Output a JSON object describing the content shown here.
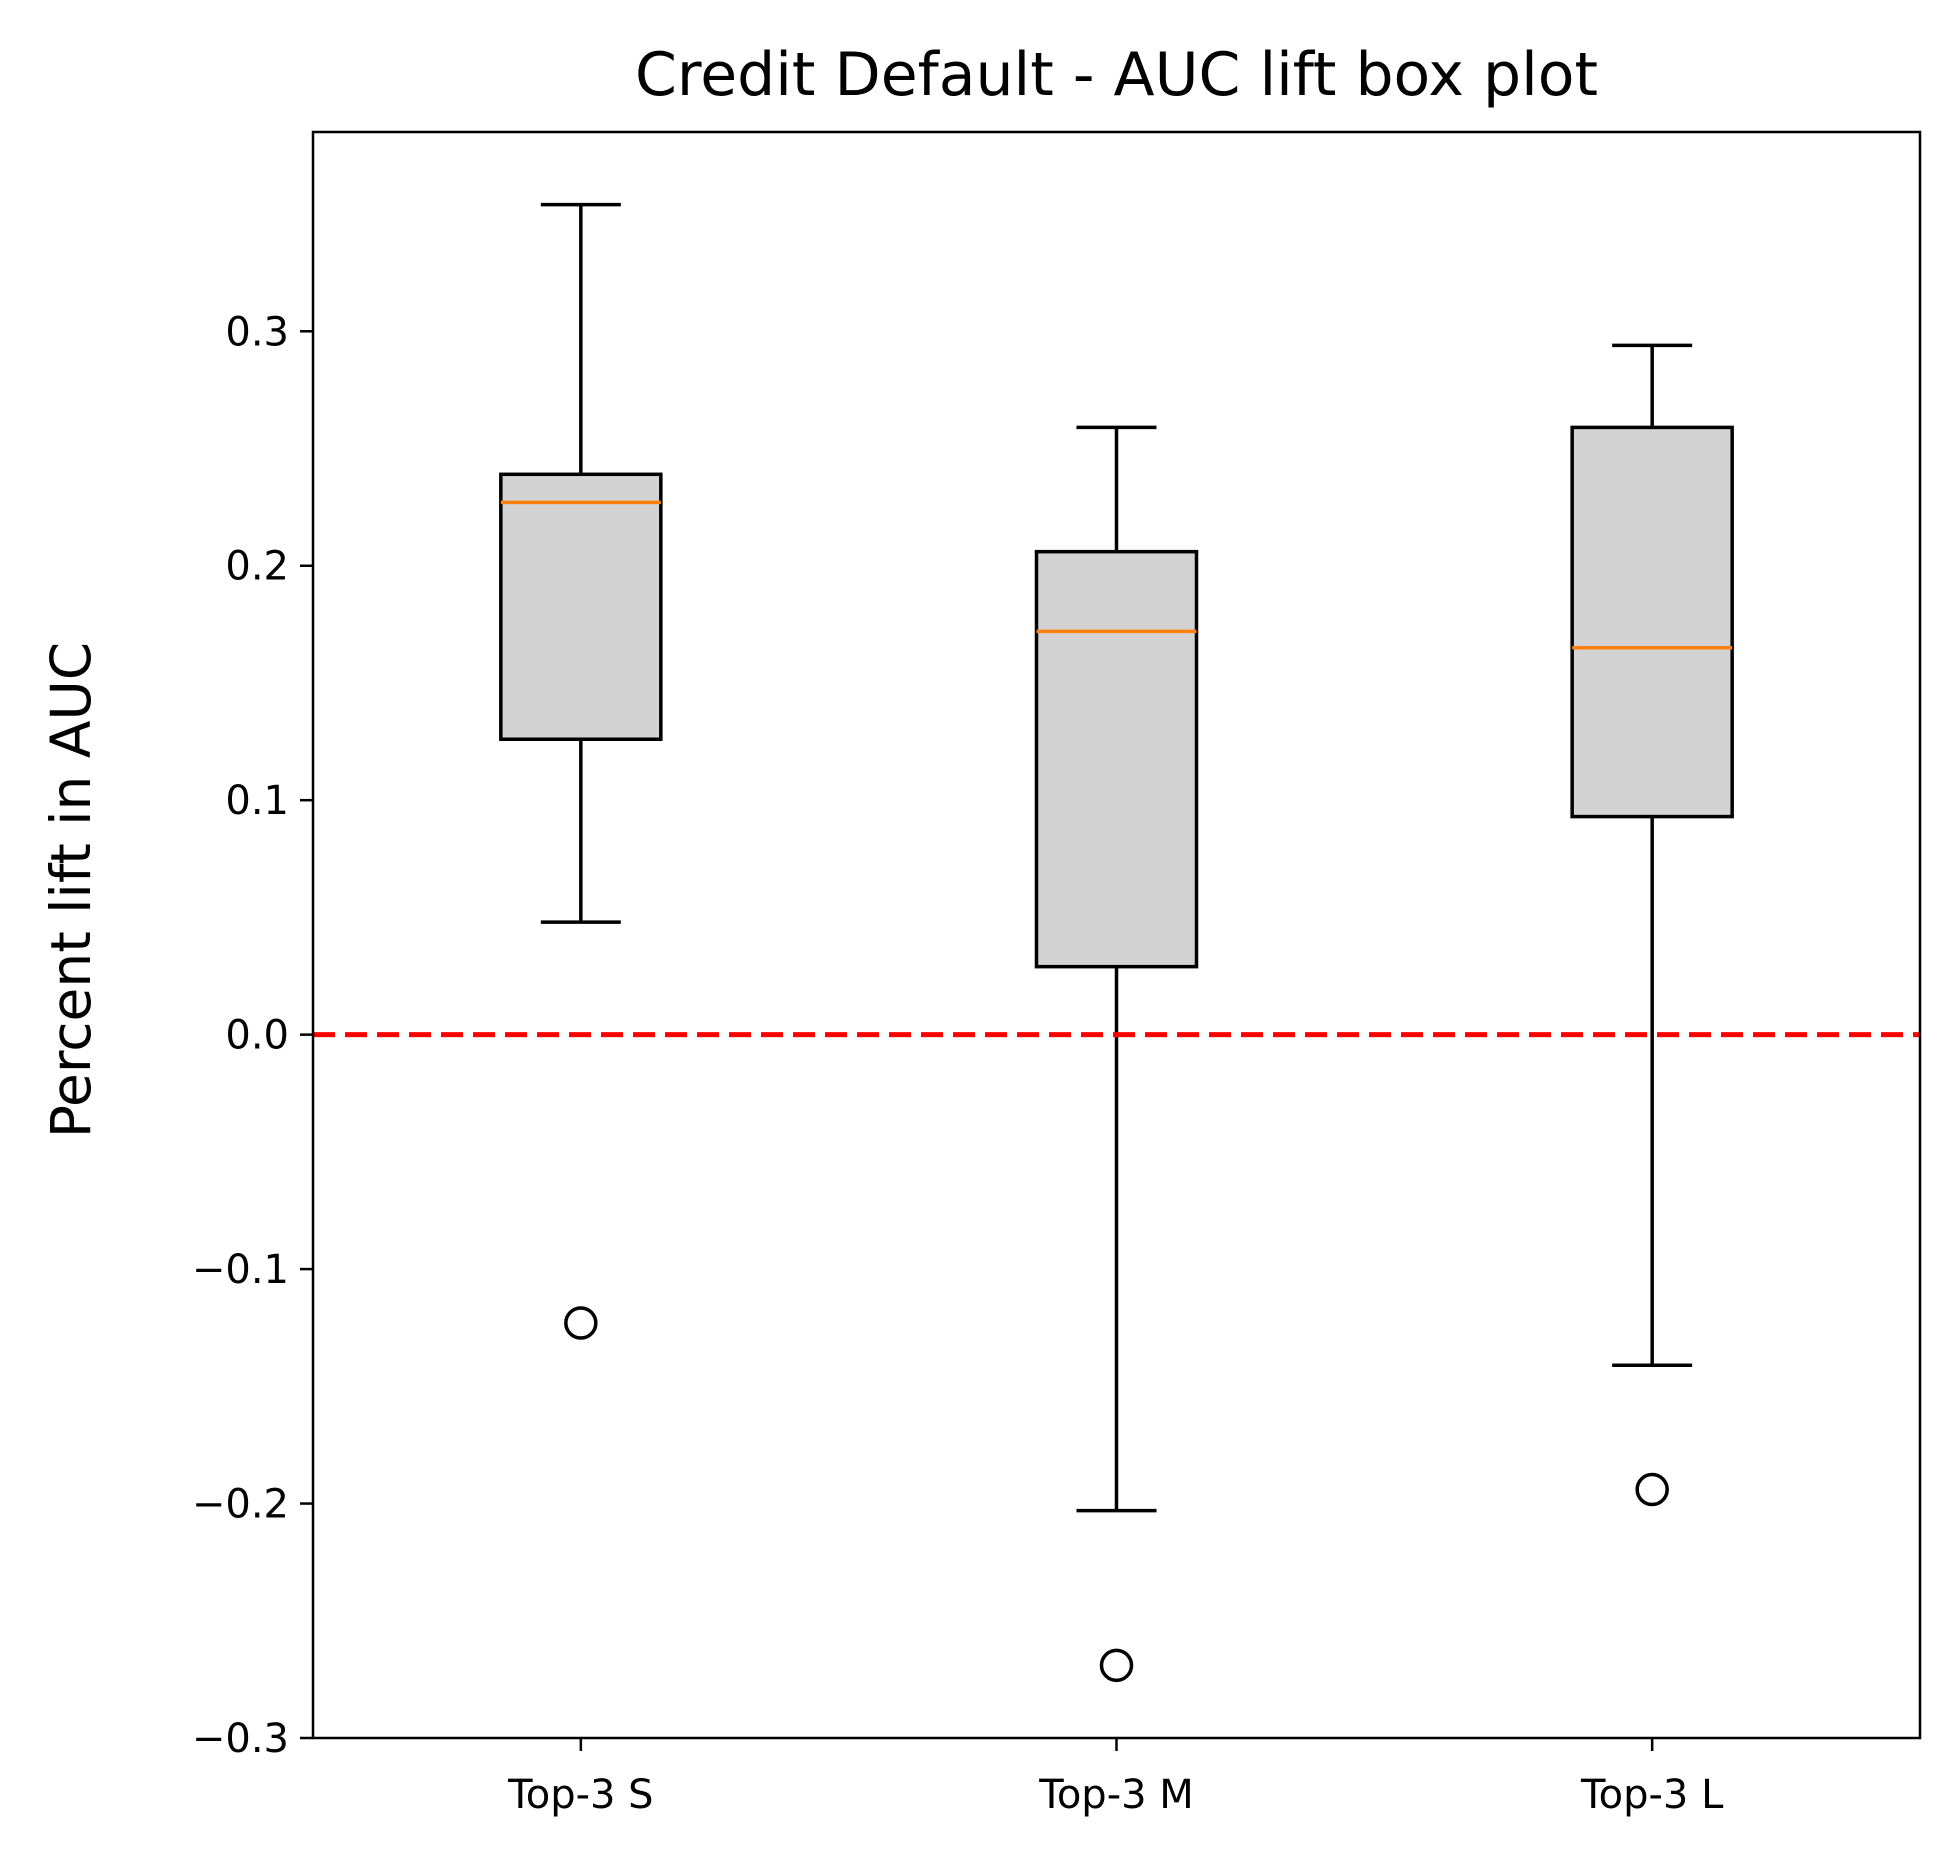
{
  "chart_data": {
    "type": "box",
    "title": "Credit Default - AUC lift box plot",
    "xlabel": "",
    "ylabel": "Percent lift in AUC",
    "categories": [
      "Top-3 S",
      "Top-3 M",
      "Top-3 L"
    ],
    "boxes": [
      {
        "category": "Top-3 S",
        "whisker_low": 0.048,
        "q1": 0.126,
        "median": 0.227,
        "q3": 0.239,
        "whisker_high": 0.354,
        "outliers": [
          -0.123
        ]
      },
      {
        "category": "Top-3 M",
        "whisker_low": -0.203,
        "q1": 0.029,
        "median": 0.172,
        "q3": 0.206,
        "whisker_high": 0.259,
        "outliers": [
          -0.269
        ]
      },
      {
        "category": "Top-3 L",
        "whisker_low": -0.141,
        "q1": 0.093,
        "median": 0.165,
        "q3": 0.259,
        "whisker_high": 0.294,
        "outliers": [
          -0.194
        ]
      }
    ],
    "reference_line": {
      "y": 0.0,
      "style": "dashed",
      "color": "#ff0000"
    },
    "ylim": [
      -0.3,
      0.385
    ],
    "yticks": [
      -0.3,
      -0.2,
      -0.1,
      0.0,
      0.1,
      0.2,
      0.3
    ],
    "ytick_labels": [
      "−0.3",
      "−0.2",
      "−0.1",
      "0.0",
      "0.1",
      "0.2",
      "0.3"
    ],
    "grid": false,
    "colors": {
      "box_fill": "#d3d3d3",
      "box_edge": "#000000",
      "median": "#ff7f0e",
      "reference": "#ff0000"
    }
  }
}
